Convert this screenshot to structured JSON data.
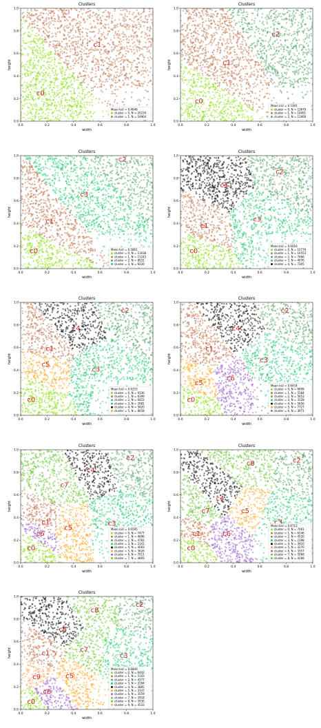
{
  "chart_data": [
    {
      "type": "scatter",
      "title": "Clusters",
      "xlabel": "width",
      "ylabel": "height",
      "xlim": [
        0,
        1.0
      ],
      "ylim": [
        0,
        1.0
      ],
      "xticks": [
        "0.0",
        "0.2",
        "0.4",
        "0.6",
        "0.8",
        "1.0"
      ],
      "yticks": [
        "0.0",
        "0.2",
        "0.4",
        "0.6",
        "0.8",
        "1.0"
      ],
      "mean_iou": "Mean IoU = 0.4646",
      "series": [
        {
          "name": "cluster = 0, N =  20234",
          "label": "c0",
          "color": "#8fe01f",
          "cx": 0.15,
          "cy": 0.25
        },
        {
          "name": "cluster = 1, N =  19904",
          "label": "c1",
          "color": "#c27a55",
          "cx": 0.58,
          "cy": 0.68
        }
      ]
    },
    {
      "type": "scatter",
      "title": "Clusters",
      "xlabel": "width",
      "ylabel": "height",
      "xlim": [
        0,
        1.0
      ],
      "ylim": [
        0,
        1.0
      ],
      "xticks": [
        "0.0",
        "0.2",
        "0.4",
        "0.6",
        "0.8",
        "1.0"
      ],
      "yticks": [
        "0.0",
        "0.2",
        "0.4",
        "0.6",
        "0.8",
        "1.0"
      ],
      "mean_iou": "Mean IoU = 0.5391",
      "series": [
        {
          "name": "cluster = 0, N =  13679",
          "label": "c0",
          "color": "#8fe01f",
          "cx": 0.14,
          "cy": 0.18
        },
        {
          "name": "cluster = 1, N =  14491",
          "label": "c1",
          "color": "#c27a55",
          "cx": 0.35,
          "cy": 0.52
        },
        {
          "name": "cluster = 2, N =  11669",
          "label": "c2",
          "color": "#5aa86b",
          "cx": 0.72,
          "cy": 0.77
        }
      ]
    },
    {
      "type": "scatter",
      "title": "Clusters",
      "xlabel": "width",
      "ylabel": "height",
      "xlim": [
        0,
        1.0
      ],
      "ylim": [
        0,
        1.0
      ],
      "xticks": [
        "0.0",
        "0.2",
        "0.4",
        "0.6",
        "0.8",
        "1.0"
      ],
      "yticks": [
        "0.0",
        "0.2",
        "0.4",
        "0.6",
        "0.8",
        "1.0"
      ],
      "mean_iou": "Mean IoU = 0.5861",
      "series": [
        {
          "name": "cluster = 0, N =  11638",
          "label": "c0",
          "color": "#8fe01f",
          "cx": 0.1,
          "cy": 0.16
        },
        {
          "name": "cluster = 1, N =  11243",
          "label": "c1",
          "color": "#c27a55",
          "cx": 0.22,
          "cy": 0.42
        },
        {
          "name": "cluster = 2, N =   8031",
          "label": "c2",
          "color": "#5aa86b",
          "cx": 0.77,
          "cy": 0.97
        },
        {
          "name": "cluster = 3, N =   9226",
          "label": "c3",
          "color": "#2fca7a",
          "cx": 0.48,
          "cy": 0.66
        }
      ]
    },
    {
      "type": "scatter",
      "title": "Clusters",
      "xlabel": "width",
      "ylabel": "height",
      "xlim": [
        0,
        1.0
      ],
      "ylim": [
        0,
        1.0
      ],
      "xticks": [
        "0.0",
        "0.2",
        "0.4",
        "0.6",
        "0.8",
        "1.0"
      ],
      "yticks": [
        "0.0",
        "0.2",
        "0.4",
        "0.6",
        "0.8",
        "1.0"
      ],
      "mean_iou": "Mean IoU = 0.6016",
      "series": [
        {
          "name": "cluster = 0, N =  10779",
          "label": "c0",
          "color": "#8fe01f",
          "cx": 0.1,
          "cy": 0.16
        },
        {
          "name": "cluster = 1, N =  10553",
          "label": "c1",
          "color": "#c27a55",
          "cx": 0.18,
          "cy": 0.38
        },
        {
          "name": "cluster = 2, N =   7466",
          "label": "c2",
          "color": "#5aa86b",
          "cx": 0.75,
          "cy": 0.86
        },
        {
          "name": "cluster = 3, N =   4076",
          "label": "c3",
          "color": "#2fca7a",
          "cx": 0.58,
          "cy": 0.44
        },
        {
          "name": "cluster = 4, N =   7305",
          "label": "c4",
          "color": "#111111",
          "cx": 0.33,
          "cy": 0.74
        }
      ]
    },
    {
      "type": "scatter",
      "title": "Clusters",
      "xlabel": "width",
      "ylabel": "height",
      "xlim": [
        0,
        1.0
      ],
      "ylim": [
        0,
        1.0
      ],
      "xticks": [
        "0.0",
        "0.2",
        "0.4",
        "0.6",
        "0.8",
        "1.0"
      ],
      "yticks": [
        "0.0",
        "0.2",
        "0.4",
        "0.6",
        "0.8",
        "1.0"
      ],
      "mean_iou": "Mean IoU = 0.6253",
      "series": [
        {
          "name": "cluster = 0, N =   9130",
          "label": "c0",
          "color": "#8fe01f",
          "cx": 0.08,
          "cy": 0.14
        },
        {
          "name": "cluster = 1, N =   6399",
          "label": "c1",
          "color": "#c27a55",
          "cx": 0.22,
          "cy": 0.59
        },
        {
          "name": "cluster = 2, N =   6422",
          "label": "c2",
          "color": "#5aa86b",
          "cx": 0.79,
          "cy": 0.93
        },
        {
          "name": "cluster = 3, N =   3981",
          "label": "c3",
          "color": "#2fca7a",
          "cx": 0.57,
          "cy": 0.41
        },
        {
          "name": "cluster = 4, N =   5620",
          "label": "c4",
          "color": "#111111",
          "cx": 0.42,
          "cy": 0.77
        },
        {
          "name": "cluster = 5, N =   8658",
          "label": "c5",
          "color": "#ffa726",
          "cx": 0.19,
          "cy": 0.45
        }
      ]
    },
    {
      "type": "scatter",
      "title": "Clusters",
      "xlabel": "width",
      "ylabel": "height",
      "xlim": [
        0,
        1.0
      ],
      "ylim": [
        0,
        1.0
      ],
      "xticks": [
        "0.0",
        "0.2",
        "0.4",
        "0.6",
        "0.8",
        "1.0"
      ],
      "yticks": [
        "0.0",
        "0.2",
        "0.4",
        "0.6",
        "0.8",
        "1.0"
      ],
      "mean_iou": "Mean IoU = 0.6434",
      "series": [
        {
          "name": "cluster = 0, N =   8499",
          "label": "c0",
          "color": "#8fe01f",
          "cx": 0.08,
          "cy": 0.14
        },
        {
          "name": "cluster = 1, N =   5584",
          "label": "c1",
          "color": "#c27a55",
          "cx": 0.22,
          "cy": 0.59
        },
        {
          "name": "cluster = 2, N =   5653",
          "label": "c2",
          "color": "#5aa86b",
          "cx": 0.79,
          "cy": 0.93
        },
        {
          "name": "cluster = 3, N =   3128",
          "label": "c3",
          "color": "#2fca7a",
          "cx": 0.63,
          "cy": 0.49
        },
        {
          "name": "cluster = 4, N =   5656",
          "label": "c4",
          "color": "#111111",
          "cx": 0.42,
          "cy": 0.77
        },
        {
          "name": "cluster = 5, N =   7727",
          "label": "c5",
          "color": "#ffa726",
          "cx": 0.14,
          "cy": 0.29
        },
        {
          "name": "cluster = 6, N =   3971",
          "label": "c6",
          "color": "#9c65c9",
          "cx": 0.38,
          "cy": 0.33
        }
      ]
    },
    {
      "type": "scatter",
      "title": "Clusters",
      "xlabel": "width",
      "ylabel": "height",
      "xlim": [
        0,
        1.0
      ],
      "ylim": [
        0,
        1.0
      ],
      "xticks": [
        "0.0",
        "0.2",
        "0.4",
        "0.6",
        "0.8",
        "1.0"
      ],
      "yticks": [
        "0.0",
        "0.2",
        "0.4",
        "0.6",
        "0.8",
        "1.0"
      ],
      "mean_iou": "Mean IoU = 0.6595",
      "series": [
        {
          "name": "cluster = 0, N =   7477",
          "label": "c0",
          "color": "#8fe01f",
          "cx": 0.08,
          "cy": 0.13
        },
        {
          "name": "cluster = 1, N =   4696",
          "label": "c1",
          "color": "#c27a55",
          "cx": 0.19,
          "cy": 0.36
        },
        {
          "name": "cluster = 2, N =   4781",
          "label": "c2",
          "color": "#5aa86b",
          "cx": 0.83,
          "cy": 0.93
        },
        {
          "name": "cluster = 3, N =   2141",
          "label": "c3",
          "color": "#2fca7a",
          "cx": 0.69,
          "cy": 0.35
        },
        {
          "name": "cluster = 4, N =   4083",
          "label": "c4",
          "color": "#111111",
          "cx": 0.53,
          "cy": 0.82
        },
        {
          "name": "cluster = 5, N =   3626",
          "label": "c5",
          "color": "#ffa726",
          "cx": 0.36,
          "cy": 0.31
        },
        {
          "name": "cluster = 6, N =   7011",
          "label": "c6",
          "color": "#9c65c9",
          "cx": 0.15,
          "cy": 0.26
        },
        {
          "name": "cluster = 7, N =   4893",
          "label": "c7",
          "color": "#72c93f",
          "cx": 0.33,
          "cy": 0.69
        }
      ]
    },
    {
      "type": "scatter",
      "title": "Clusters",
      "xlabel": "width",
      "ylabel": "height",
      "xlim": [
        0,
        1.0
      ],
      "ylim": [
        0,
        1.0
      ],
      "xticks": [
        "0.0",
        "0.2",
        "0.4",
        "0.6",
        "0.8",
        "1.0"
      ],
      "yticks": [
        "0.0",
        "0.2",
        "0.4",
        "0.6",
        "0.8",
        "1.0"
      ],
      "mean_iou": "Mean IoU = 0.6712",
      "series": [
        {
          "name": "cluster = 0, N =   7061",
          "label": "c0",
          "color": "#8fe01f",
          "cx": 0.08,
          "cy": 0.13
        },
        {
          "name": "cluster = 1, N =   6246",
          "label": "c1",
          "color": "#c27a55",
          "cx": 0.12,
          "cy": 0.26
        },
        {
          "name": "cluster = 2, N =   4520",
          "label": "c2",
          "color": "#5aa86b",
          "cx": 0.88,
          "cy": 0.91
        },
        {
          "name": "cluster = 3, N =   2398",
          "label": "c3",
          "color": "#2fca7a",
          "cx": 0.74,
          "cy": 0.36
        },
        {
          "name": "cluster = 4, N =   3910",
          "label": "c4",
          "color": "#111111",
          "cx": 0.3,
          "cy": 0.57
        },
        {
          "name": "cluster = 5, N =   3270",
          "label": "c5",
          "color": "#ffa726",
          "cx": 0.49,
          "cy": 0.46
        },
        {
          "name": "cluster = 6, N =   3357",
          "label": "c6",
          "color": "#9c65c9",
          "cx": 0.35,
          "cy": 0.26
        },
        {
          "name": "cluster = 7, N =   5068",
          "label": "c7",
          "color": "#72c93f",
          "cx": 0.19,
          "cy": 0.46
        },
        {
          "name": "cluster = 8, N =   4289",
          "label": "c8",
          "color": "#72c93f",
          "cx": 0.53,
          "cy": 0.88
        }
      ]
    },
    {
      "type": "scatter",
      "title": "Clusters",
      "xlabel": "width",
      "ylabel": "height",
      "xlim": [
        0,
        1.0
      ],
      "ylim": [
        0,
        1.0
      ],
      "xticks": [
        "0.0",
        "0.2",
        "0.4",
        "0.6",
        "0.8",
        "1.0"
      ],
      "yticks": [
        "0.0",
        "0.2",
        "0.4",
        "0.6",
        "0.8",
        "1.0"
      ],
      "mean_iou": "Mean IoU = 0.6840",
      "series": [
        {
          "name": "cluster = 0, N =   6442",
          "label": "c0",
          "color": "#8fe01f",
          "cx": 0.08,
          "cy": 0.07
        },
        {
          "name": "cluster = 1, N =   5103",
          "label": "c1",
          "color": "#c27a55",
          "cx": 0.19,
          "cy": 0.5
        },
        {
          "name": "cluster = 2, N =   4377",
          "label": "c2",
          "color": "#5aa86b",
          "cx": 0.9,
          "cy": 0.93
        },
        {
          "name": "cluster = 3, N =   2284",
          "label": "c3",
          "color": "#2fca7a",
          "cx": 0.78,
          "cy": 0.48
        },
        {
          "name": "cluster = 4, N =   3885",
          "label": "c4",
          "color": "#111111",
          "cx": 0.32,
          "cy": 0.71
        },
        {
          "name": "cluster = 5, N =   3147",
          "label": "c5",
          "color": "#ffa726",
          "cx": 0.37,
          "cy": 0.3
        },
        {
          "name": "cluster = 6, N =   3559",
          "label": "c6",
          "color": "#9c65c9",
          "cx": 0.2,
          "cy": 0.16
        },
        {
          "name": "cluster = 7, N =   2918",
          "label": "c7",
          "color": "#72c93f",
          "cx": 0.48,
          "cy": 0.53
        },
        {
          "name": "cluster = 8, N =   3930",
          "label": "c8",
          "color": "#72c93f",
          "cx": 0.56,
          "cy": 0.88
        },
        {
          "name": "cluster = 9, N =   4533",
          "label": "c9",
          "color": "#ffab70",
          "cx": 0.12,
          "cy": 0.29
        }
      ]
    }
  ]
}
